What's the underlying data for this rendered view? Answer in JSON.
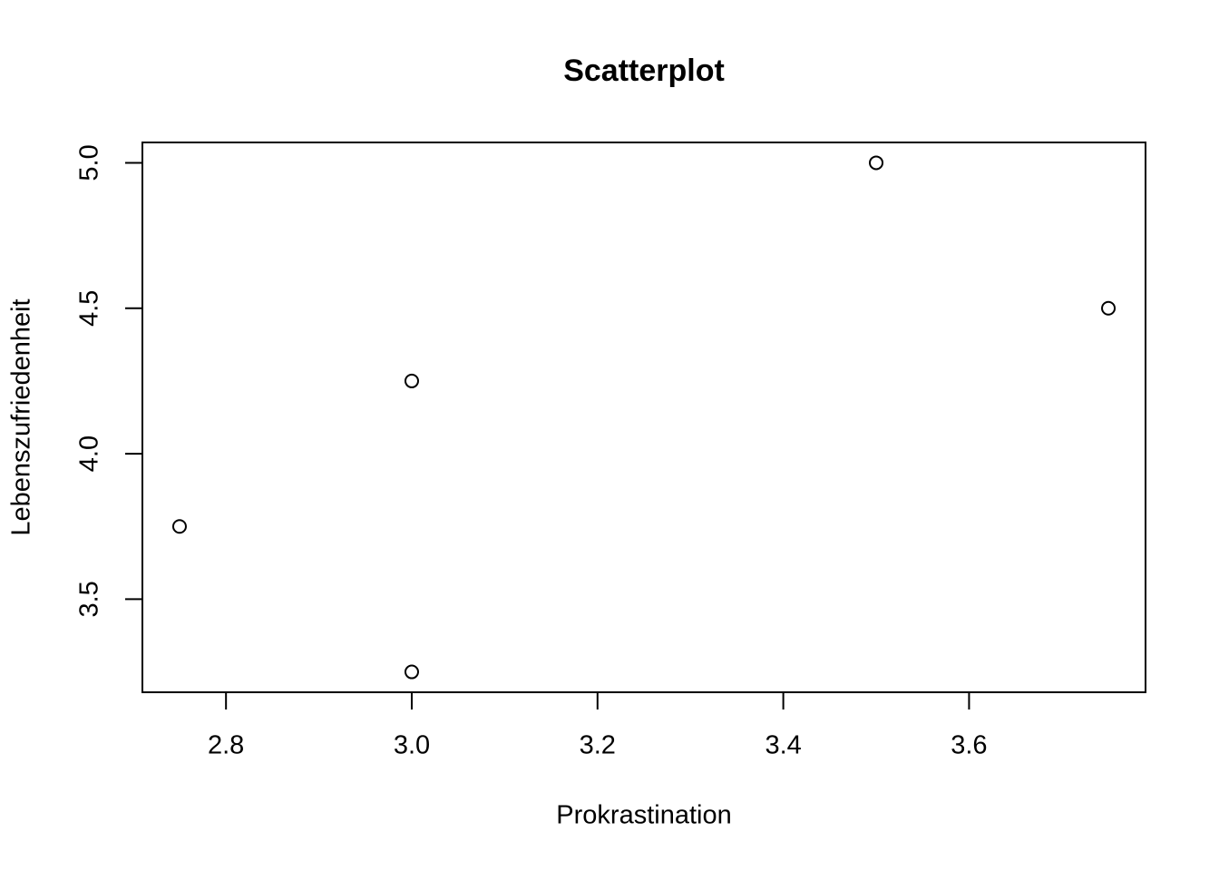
{
  "chart_data": {
    "type": "scatter",
    "title": "Scatterplot",
    "x_label": "Prokrastination",
    "y_label": "Lebenszufriedenheit",
    "series": [
      {
        "x": [
          2.75,
          3.0,
          3.0,
          3.5,
          3.75
        ],
        "values": [
          3.75,
          4.25,
          3.25,
          5.0,
          4.5
        ],
        "color": "#000000"
      }
    ],
    "xlim": [
      2.71,
      3.79
    ],
    "ylim": [
      3.18,
      5.07
    ],
    "xticks": [
      2.8,
      {
        "value": 3.0,
        "label": "3.0"
      },
      3.2,
      3.4,
      3.6
    ],
    "yticks": [
      3.5,
      {
        "value": 4.0,
        "label": "4.0"
      },
      4.5,
      {
        "value": 5.0,
        "label": "5.0"
      }
    ]
  }
}
